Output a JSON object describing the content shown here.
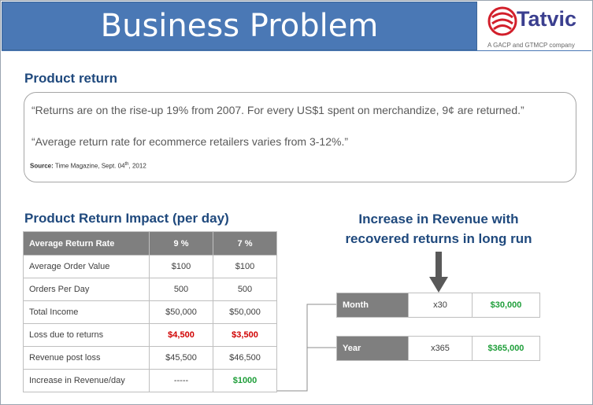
{
  "header": {
    "title": "Business Problem"
  },
  "logo": {
    "name": "Tatvic",
    "tagline": "A GACP and GTMCP company"
  },
  "product_return": {
    "heading": "Product return",
    "quote1": "“Returns are on the rise-up 19% from 2007. For every US$1 spent on merchandize, 9¢ are returned.”",
    "quote2": "“Average return rate for ecommerce retailers varies from 3-12%.”",
    "source_label": "Source:",
    "source_text": "Time Magazine, Sept. 04",
    "source_sup": "th",
    "source_year": ", 2012"
  },
  "impact": {
    "heading": "Product Return Impact (per day)",
    "headers": [
      "Average Return Rate",
      "9 %",
      "7 %"
    ],
    "rows": [
      [
        "Average Order Value",
        "$100",
        "$100"
      ],
      [
        "Orders Per Day",
        "500",
        "500"
      ],
      [
        "Total Income",
        "$50,000",
        "$50,000"
      ],
      [
        "Loss due to returns",
        "$4,500",
        "$3,500"
      ],
      [
        "Revenue post loss",
        "$45,500",
        "$46,500"
      ],
      [
        "Increase in Revenue/day",
        "-----",
        "$1000"
      ]
    ]
  },
  "revenue": {
    "heading_line1": "Increase in Revenue with",
    "heading_line2": "recovered returns in long run",
    "month": {
      "label": "Month",
      "multiplier": "x30",
      "amount": "$30,000"
    },
    "year": {
      "label": "Year",
      "multiplier": "x365",
      "amount": "$365,000"
    }
  },
  "colors": {
    "banner": "#4a78b5",
    "heading": "#1f497d",
    "loss": "#d00000",
    "gain": "#1f9e3a",
    "table_header": "#7f7f7f"
  }
}
